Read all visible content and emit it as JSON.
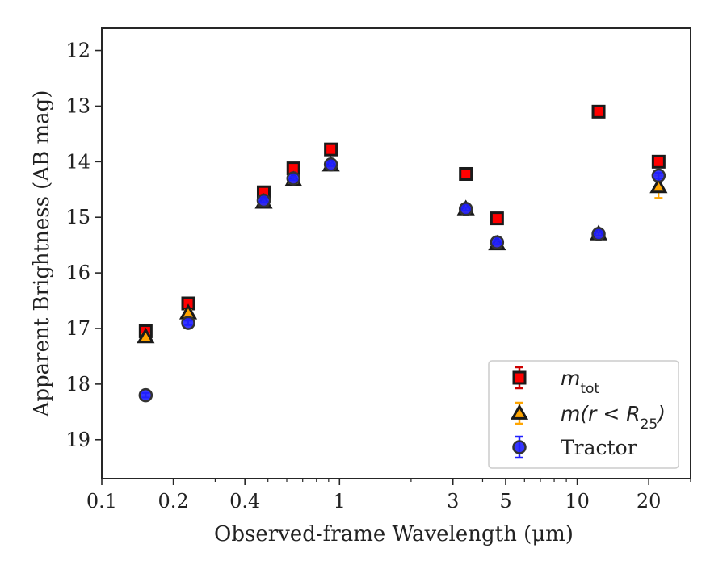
{
  "chart_data": {
    "type": "scatter",
    "xlabel": "Observed-frame Wavelength (μm)",
    "ylabel": "Apparent Brightness (AB mag)",
    "x_scale": "log",
    "xlim": [
      0.1,
      30
    ],
    "ylim": [
      19.7,
      11.6
    ],
    "y_inverted": true,
    "x_ticks": [
      0.1,
      0.2,
      0.4,
      1,
      3,
      5,
      10,
      20
    ],
    "x_tick_labels": [
      "0.1",
      "0.2",
      "0.4",
      "1",
      "3",
      "5",
      "10",
      "20"
    ],
    "y_ticks": [
      12,
      13,
      14,
      15,
      16,
      17,
      18,
      19
    ],
    "y_tick_labels": [
      "12",
      "13",
      "14",
      "15",
      "16",
      "17",
      "18",
      "19"
    ],
    "grid": false,
    "legend_position": "lower-right",
    "series": [
      {
        "name": "m_tot",
        "legend_main": "m",
        "legend_sub": "tot",
        "marker": "square",
        "color": "#ff0000",
        "edge_color": "#1a1a1a",
        "error_color": "#cc0000",
        "x": [
          0.153,
          0.231,
          0.48,
          0.64,
          0.92,
          3.4,
          4.6,
          12.3,
          22.0
        ],
        "y": [
          17.05,
          16.55,
          14.55,
          14.12,
          13.78,
          14.22,
          15.02,
          13.1,
          14.0
        ],
        "yerr": [
          0.05,
          0.05,
          0.04,
          0.04,
          0.04,
          0.04,
          0.04,
          0.04,
          0.05
        ]
      },
      {
        "name": "m(r<R25)",
        "legend_main": "m(r < R",
        "legend_sub": "25",
        "legend_tail": ")",
        "marker": "triangle",
        "color": "#ffa500",
        "edge_color": "#1a1a1a",
        "error_color": "#ffa500",
        "x": [
          0.153,
          0.231,
          0.48,
          0.64,
          0.92,
          3.4,
          4.6,
          12.3,
          22.0
        ],
        "y": [
          17.15,
          16.72,
          14.73,
          14.33,
          14.06,
          14.85,
          15.48,
          15.3,
          14.45
        ],
        "yerr": [
          0.05,
          0.05,
          0.04,
          0.04,
          0.04,
          0.04,
          0.04,
          0.04,
          0.2
        ]
      },
      {
        "name": "Tractor",
        "marker": "circle",
        "color": "#1f1fff",
        "edge_color": "#333333",
        "error_color": "#2020ff",
        "x": [
          0.153,
          0.231,
          0.48,
          0.64,
          0.92,
          3.4,
          4.6,
          12.3,
          22.0
        ],
        "y": [
          18.2,
          16.9,
          14.7,
          14.3,
          14.05,
          14.85,
          15.45,
          15.3,
          14.25
        ],
        "yerr": [
          0.04,
          0.04,
          0.03,
          0.03,
          0.03,
          0.03,
          0.03,
          0.03,
          0.05
        ]
      }
    ]
  }
}
